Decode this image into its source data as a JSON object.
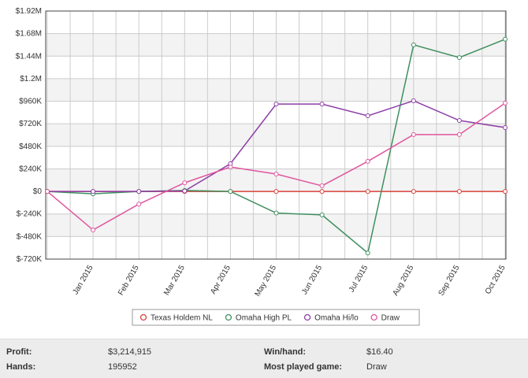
{
  "chart_data": {
    "type": "line",
    "categories": [
      null,
      "Jan 2015",
      "Feb 2015",
      "Mar 2015",
      "Apr 2015",
      "May 2015",
      "Jun 2015",
      "Jul 2015",
      "Aug 2015",
      "Sep 2015",
      "Oct 2015"
    ],
    "series": [
      {
        "name": "Texas Holdem NL",
        "color": "#d9413a",
        "values": [
          0,
          0,
          0,
          0,
          0,
          0,
          0,
          0,
          0,
          0,
          0
        ]
      },
      {
        "name": "Omaha High PL",
        "color": "#3f8f5f",
        "values": [
          0,
          -25000,
          0,
          10000,
          0,
          -230000,
          -250000,
          -655000,
          1560000,
          1425000,
          1620000
        ]
      },
      {
        "name": "Omaha Hi/lo",
        "color": "#8e3fa8",
        "values": [
          0,
          0,
          0,
          5000,
          295000,
          930000,
          930000,
          805000,
          965000,
          755000,
          680000
        ]
      },
      {
        "name": "Draw",
        "color": "#e0559e",
        "values": [
          0,
          -410000,
          -135000,
          92000,
          260000,
          185000,
          60000,
          320000,
          605000,
          605000,
          940000
        ]
      }
    ],
    "ylim": [
      -720000,
      1920000
    ],
    "yticks": [
      {
        "value": 1920000,
        "label": "$1.92M"
      },
      {
        "value": 1680000,
        "label": "$1.68M"
      },
      {
        "value": 1440000,
        "label": "$1.44M"
      },
      {
        "value": 1200000,
        "label": "$1.2M"
      },
      {
        "value": 960000,
        "label": "$960K"
      },
      {
        "value": 720000,
        "label": "$720K"
      },
      {
        "value": 480000,
        "label": "$480K"
      },
      {
        "value": 240000,
        "label": "$240K"
      },
      {
        "value": 0,
        "label": "$0"
      },
      {
        "value": -240000,
        "label": "$-240K"
      },
      {
        "value": -480000,
        "label": "$-480K"
      },
      {
        "value": -720000,
        "label": "$-720K"
      }
    ],
    "grid": true,
    "legend": "bottom"
  },
  "stats": {
    "profit_label": "Profit:",
    "profit": "$3,214,915",
    "hands_label": "Hands:",
    "hands": "195952",
    "win_label": "Win/hand:",
    "win": "$16.40",
    "game_label": "Most played game:",
    "game": "Draw"
  }
}
